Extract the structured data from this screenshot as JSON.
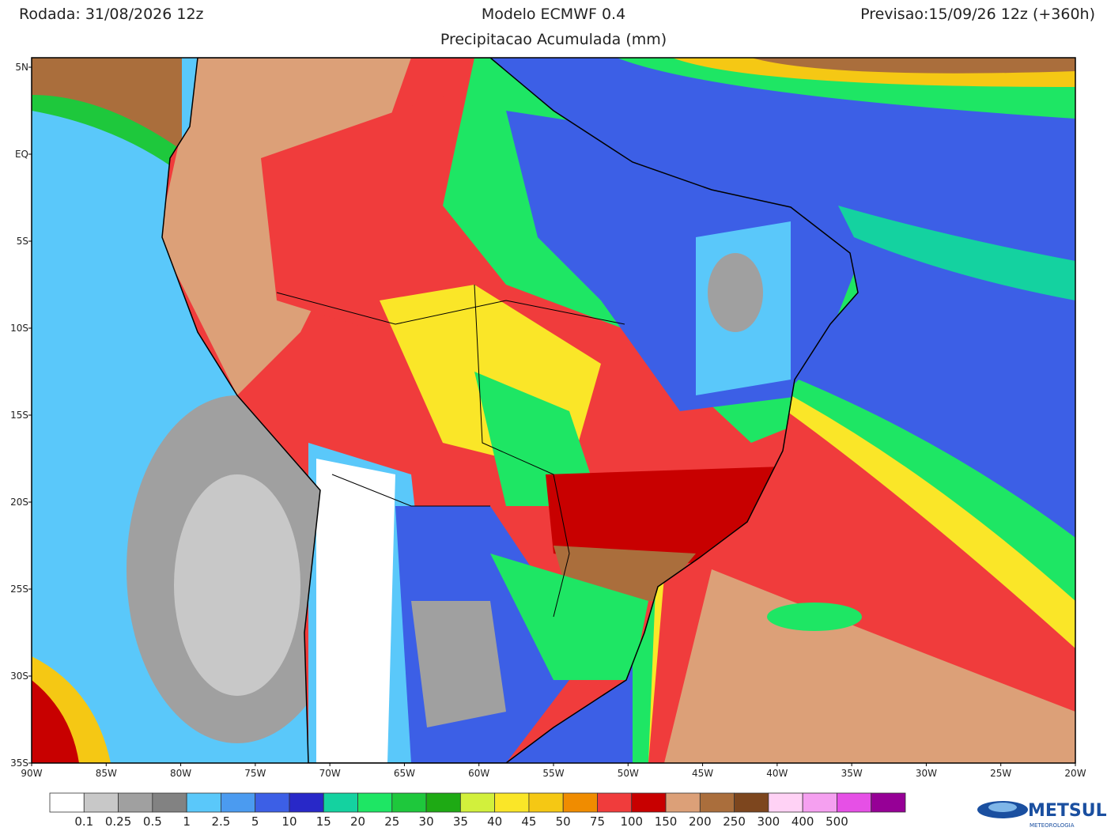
{
  "header": {
    "run": "Rodada: 31/08/2026 12z",
    "model": "Modelo ECMWF 0.4",
    "subtitle": "Precipitacao Acumulada (mm)",
    "forecast": "Previsao:15/09/26 12z (+360h)"
  },
  "map": {
    "lat_labels": [
      "5N",
      "EQ",
      "5S",
      "10S",
      "15S",
      "20S",
      "25S",
      "30S",
      "35S"
    ],
    "lon_labels": [
      "90W",
      "85W",
      "80W",
      "75W",
      "70W",
      "65W",
      "60W",
      "55W",
      "50W",
      "45W",
      "40W",
      "35W",
      "30W",
      "25W",
      "20W"
    ]
  },
  "colorbar": {
    "labels": [
      "0.1",
      "0.25",
      "0.5",
      "1",
      "2.5",
      "5",
      "10",
      "15",
      "20",
      "25",
      "30",
      "35",
      "40",
      "45",
      "50",
      "75",
      "100",
      "150",
      "200",
      "250",
      "300",
      "400",
      "500"
    ],
    "colors": [
      "#ffffff",
      "#c8c8c8",
      "#a0a0a0",
      "#828282",
      "#5ac8fa",
      "#4b9bf0",
      "#3c5fe6",
      "#2828c8",
      "#14d2a0",
      "#1ee664",
      "#1ec83c",
      "#1eaa14",
      "#d2f03c",
      "#fae628",
      "#f5c814",
      "#f08c00",
      "#f03c3c",
      "#c80000",
      "#dca078",
      "#aa6e3c",
      "#7d461e",
      "#ffd2f5",
      "#f5a0f0",
      "#e650e6",
      "#960096"
    ]
  },
  "logo": {
    "name": "METSUL",
    "tagline": "METEOROLOGIA"
  }
}
